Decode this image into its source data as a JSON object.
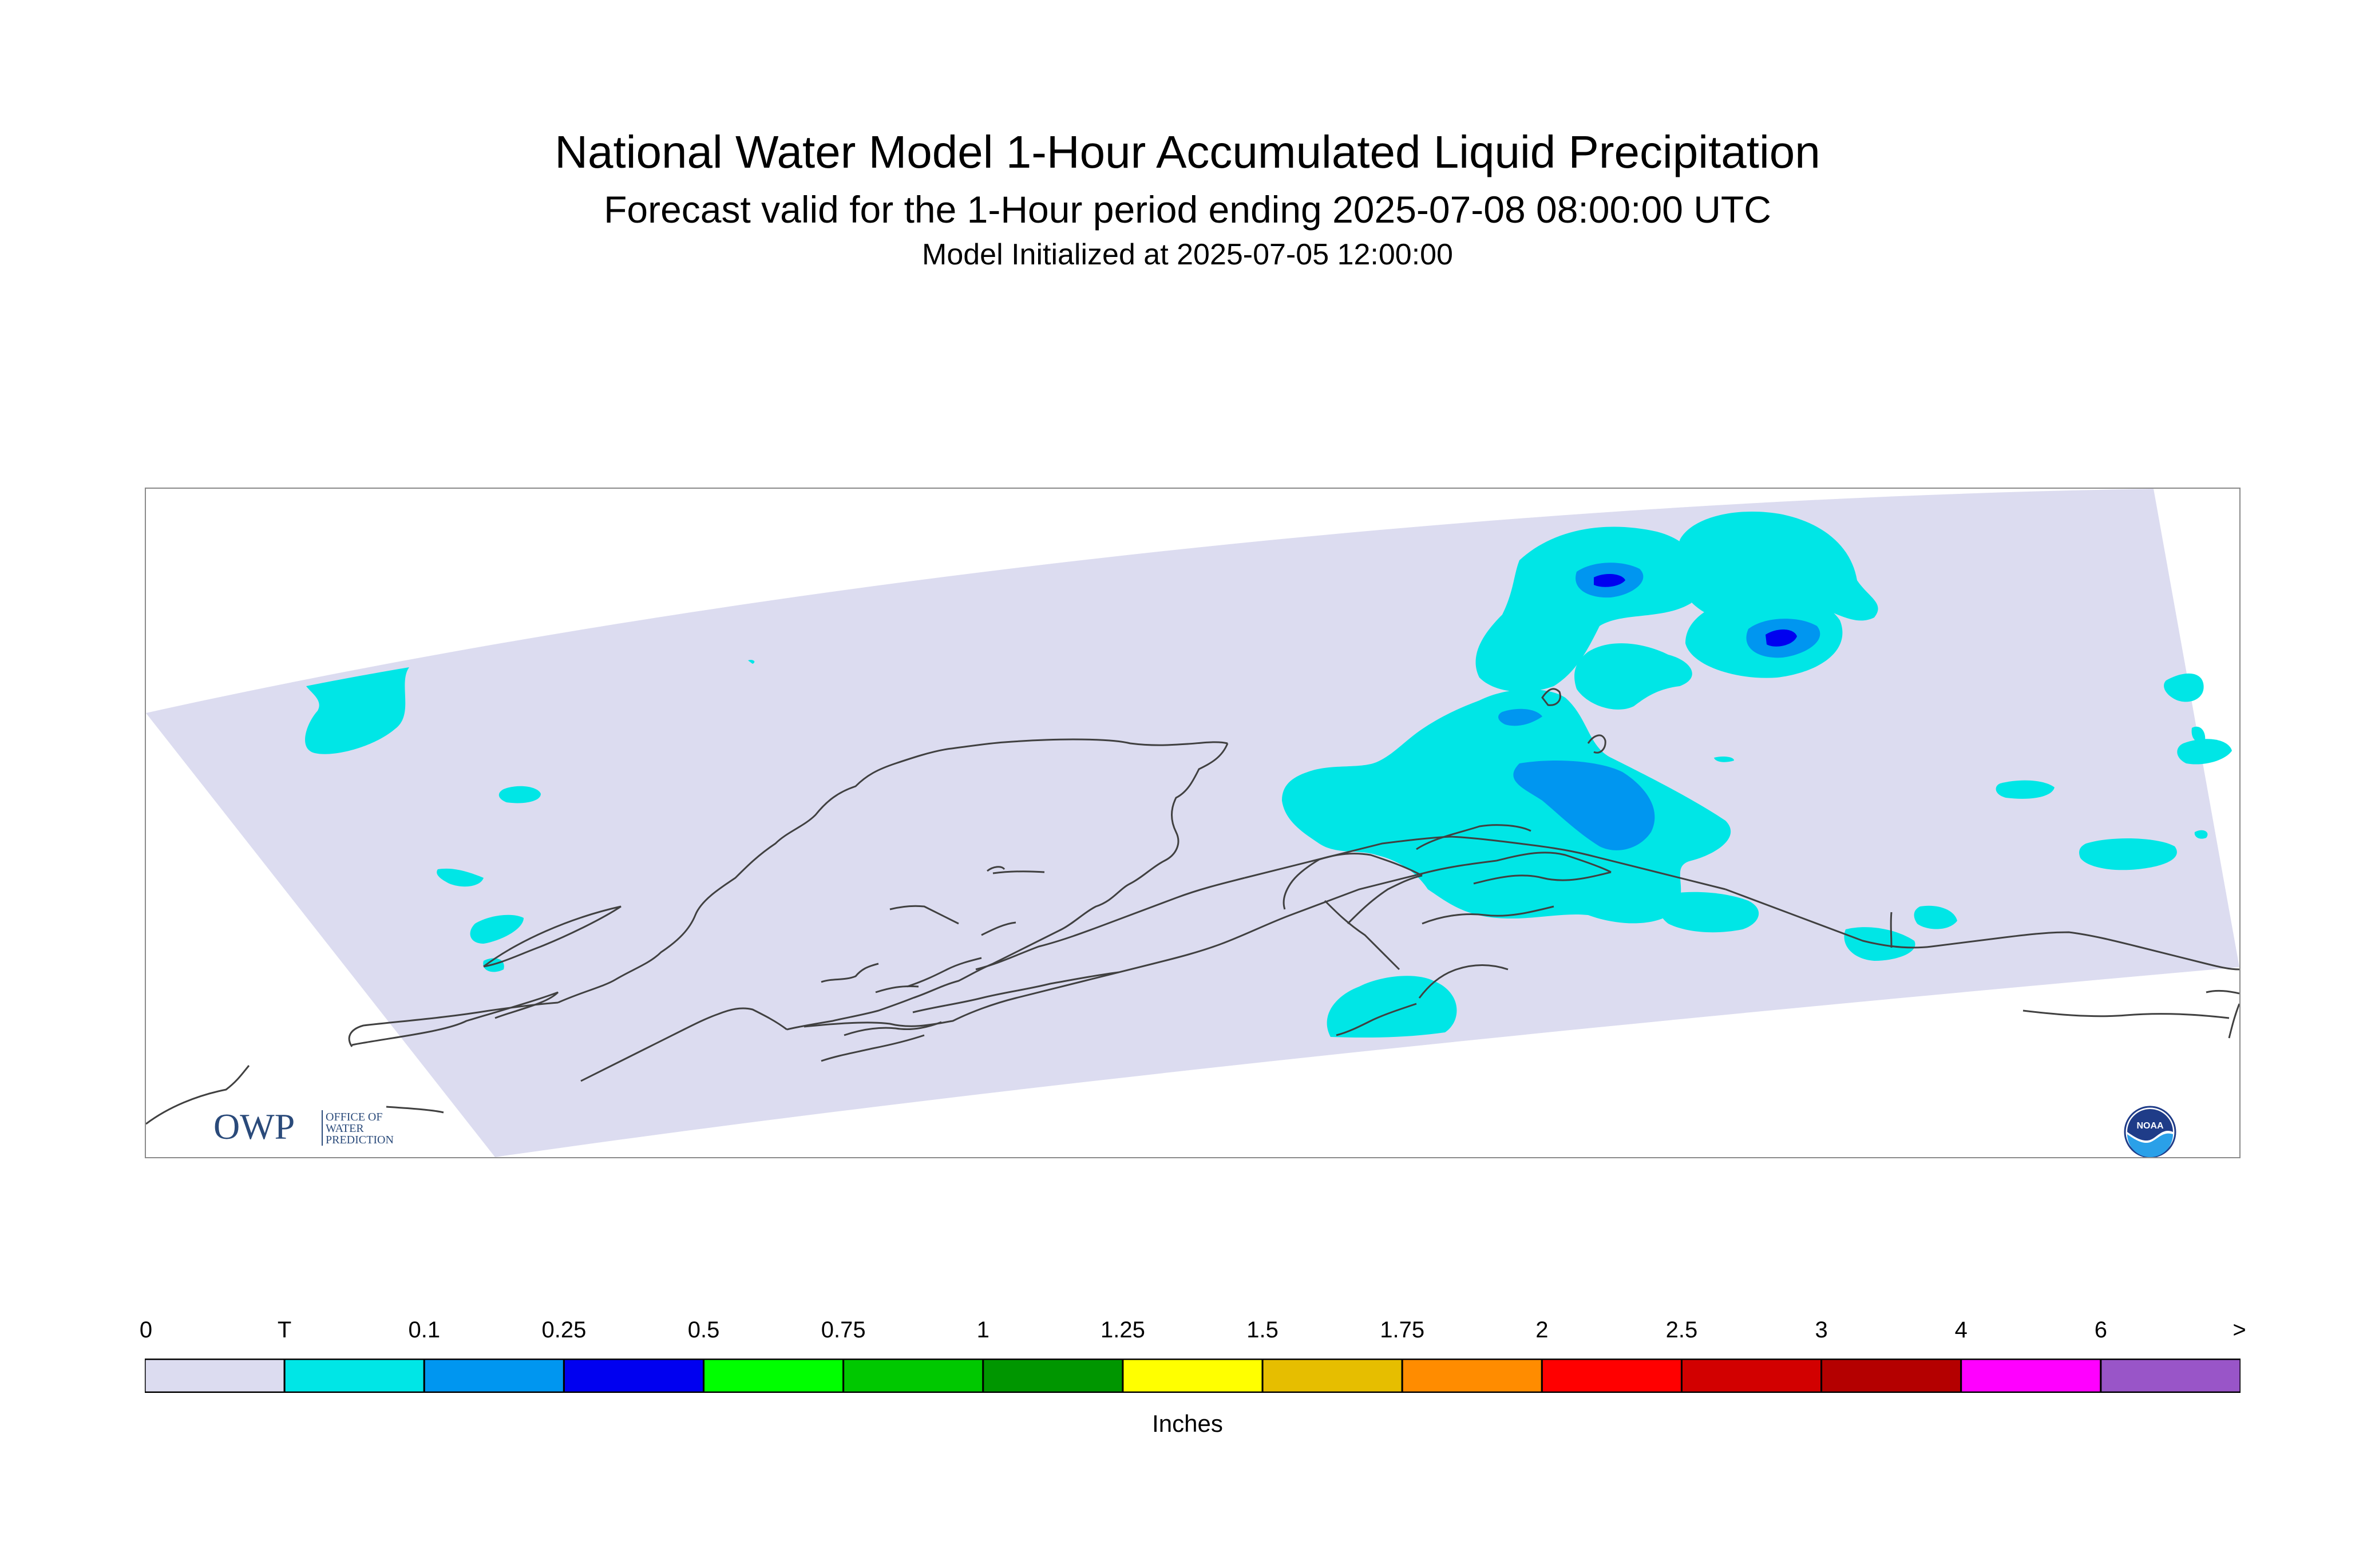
{
  "header": {
    "title": "National Water Model 1-Hour Accumulated Liquid Precipitation",
    "subtitle": "Forecast valid for the 1-Hour period ending 2025-07-08 08:00:00 UTC",
    "init": "Model Initialized at 2025-07-05 12:00:00"
  },
  "map": {
    "domain_color": "#dcdcf0",
    "coast_color": "#404040",
    "logos": {
      "left_logo": "OWP",
      "left_logo_text": [
        "OFFICE OF",
        "WATER",
        "PREDICTION"
      ],
      "right_logo": "NOAA"
    }
  },
  "legend": {
    "unit": "Inches",
    "labels": [
      "0",
      "T",
      "0.1",
      "0.25",
      "0.5",
      "0.75",
      "1",
      "1.25",
      "1.5",
      "1.75",
      "2",
      "2.5",
      "3",
      "4",
      "6",
      ">"
    ],
    "colors": [
      "#dcdcf0",
      "#00e6e6",
      "#0096f0",
      "#0000f0",
      "#00ff00",
      "#00c800",
      "#009600",
      "#ffff00",
      "#e6be00",
      "#ff8c00",
      "#ff0000",
      "#d20000",
      "#b40000",
      "#ff00ff",
      "#9955c8"
    ]
  }
}
